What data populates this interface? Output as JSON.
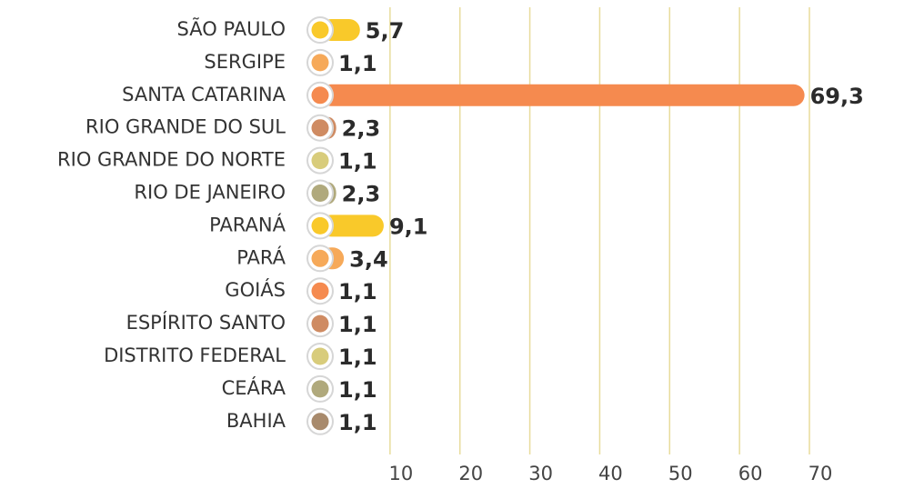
{
  "chart_data": {
    "type": "bar",
    "orientation": "horizontal",
    "categories": [
      "SÃO PAULO",
      "SERGIPE",
      "SANTA CATARINA",
      "RIO GRANDE DO SUL",
      "RIO GRANDE DO NORTE",
      "RIO DE JANEIRO",
      "PARANÁ",
      "PARÁ",
      "GOIÁS",
      "ESPÍRITO SANTO",
      "DISTRITO FEDERAL",
      "CEÁRA",
      "BAHIA"
    ],
    "values": [
      5.7,
      1.1,
      69.3,
      2.3,
      1.1,
      2.3,
      9.1,
      3.4,
      1.1,
      1.1,
      1.1,
      1.1,
      1.1
    ],
    "value_labels": [
      "5,7",
      "1,1",
      "69,3",
      "2,3",
      "1,1",
      "2,3",
      "9,1",
      "3,4",
      "1,1",
      "1,1",
      "1,1",
      "1,1",
      "1,1"
    ],
    "colors": [
      "#f9c92a",
      "#f6a959",
      "#f58a4f",
      "#cf8b62",
      "#d8cc7b",
      "#b0a97c",
      "#f9c92a",
      "#f6a959",
      "#f58a4f",
      "#cf8b62",
      "#d8cc7b",
      "#b0a97c",
      "#a88a6c"
    ],
    "xlim": [
      0,
      70
    ],
    "xticks": [
      10,
      20,
      30,
      40,
      50,
      60,
      70
    ],
    "grid": true
  }
}
